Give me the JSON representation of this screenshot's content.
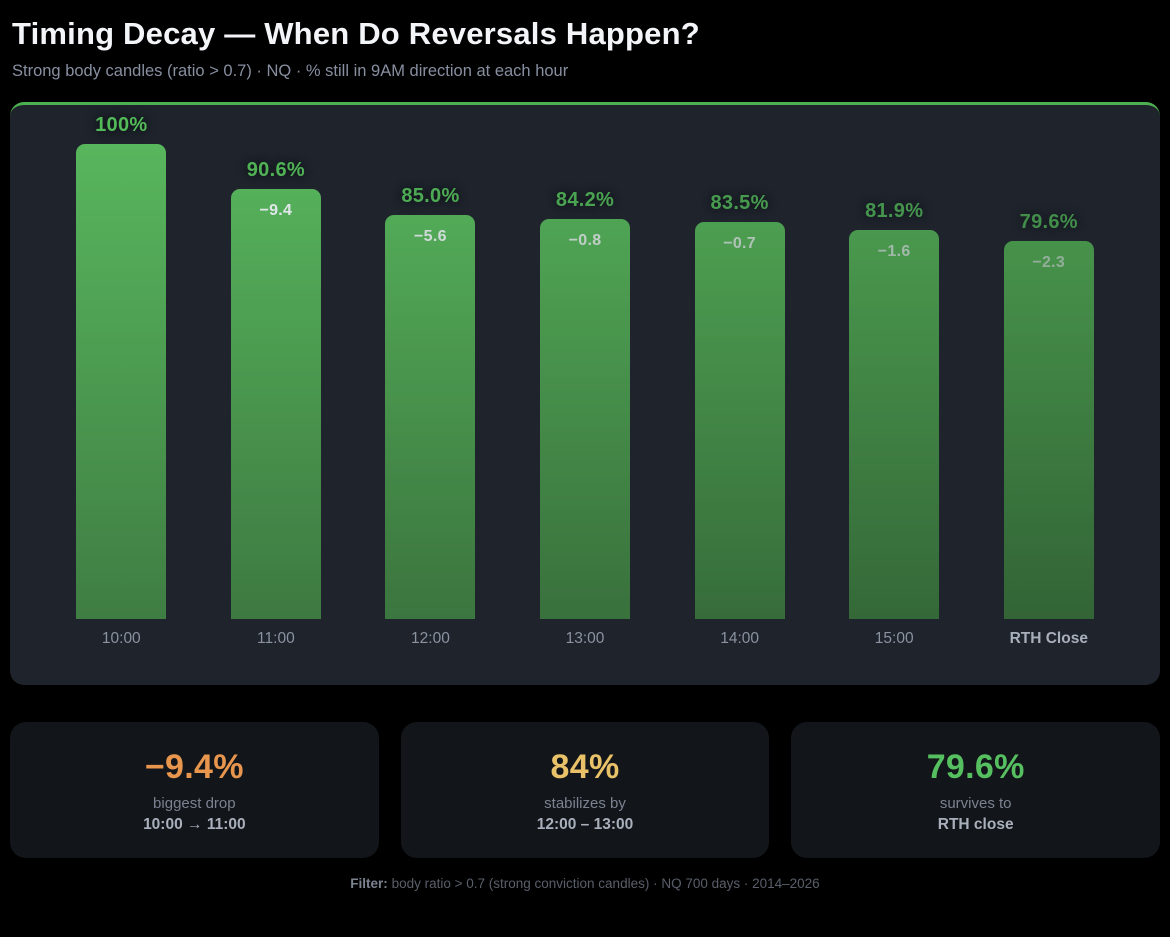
{
  "header": {
    "title": "Timing Decay — When Do Reversals Happen?",
    "subtitle": "Strong body candles (ratio > 0.7) · NQ · % still in 9AM direction at each hour"
  },
  "chart_data": {
    "type": "bar",
    "title": "Timing Decay — When Do Reversals Happen?",
    "subtitle": "Strong body candles (ratio > 0.7) · NQ · % still in 9AM direction at each hour",
    "categories": [
      "10:00",
      "11:00",
      "12:00",
      "13:00",
      "14:00",
      "15:00",
      "RTH Close"
    ],
    "values": [
      100,
      90.6,
      85.0,
      84.2,
      83.5,
      81.9,
      79.6
    ],
    "bar_labels": [
      "100%",
      "90.6%",
      "85.0%",
      "84.2%",
      "83.5%",
      "81.9%",
      "79.6%"
    ],
    "deltas": [
      null,
      -9.4,
      -5.6,
      -0.8,
      -0.7,
      -1.6,
      -2.3
    ],
    "delta_labels": [
      "",
      "−9.4",
      "−5.6",
      "−0.8",
      "−0.7",
      "−1.6",
      "−2.3"
    ],
    "xlabel": "",
    "ylabel": "% still in 9AM direction",
    "ylim": [
      0,
      100
    ],
    "grid": false,
    "legend": false
  },
  "stats": [
    {
      "value": "−9.4%",
      "line1": "biggest drop",
      "line2": "10:00 → 11:00",
      "color": "#e8954e"
    },
    {
      "value": "84%",
      "line1": "stabilizes by",
      "line2": "12:00 – 13:00",
      "color": "#e9c169"
    },
    {
      "value": "79.6%",
      "line1": "survives to",
      "line2": "RTH close",
      "color": "#56bf60"
    }
  ],
  "footer": {
    "prefix": "Filter:",
    "text": " body ratio > 0.7 (strong conviction candles) · NQ 700 days · 2014–2026"
  },
  "colors": {
    "accent_green": "#4caf50",
    "bar_gradient_top": "#58b65d",
    "bar_gradient_bottom": "#3f7d43",
    "value_label_green": "#52ba58",
    "panel_bg": "#1e232c",
    "card_bg": "#121519",
    "page_bg": "#000000"
  }
}
